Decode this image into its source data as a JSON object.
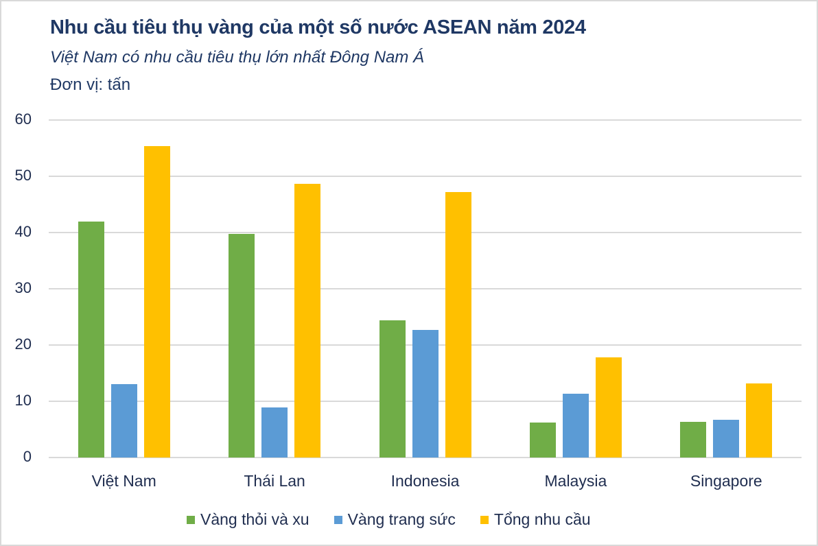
{
  "header": {
    "title": "Nhu cầu tiêu thụ vàng của một số nước ASEAN năm 2024",
    "subtitle": "Việt Nam có nhu cầu tiêu thụ lớn nhất Đông Nam Á",
    "unit": "Đơn vị: tấn"
  },
  "axis": {
    "y_ticks": [
      "60",
      "50",
      "40",
      "30",
      "20",
      "10",
      "0"
    ]
  },
  "legend": [
    {
      "label": "Vàng thỏi và xu",
      "color": "#70ad47"
    },
    {
      "label": "Vàng trang sức",
      "color": "#5b9bd5"
    },
    {
      "label": "Tổng nhu cầu",
      "color": "#ffc000"
    }
  ],
  "categories": [
    "Việt Nam",
    "Thái Lan",
    "Indonesia",
    "Malaysia",
    "Singapore"
  ],
  "chart_data": {
    "type": "bar",
    "title": "Nhu cầu tiêu thụ vàng của một số nước ASEAN năm 2024",
    "subtitle": "Việt Nam có nhu cầu tiêu thụ lớn nhất Đông Nam Á",
    "unit": "Đơn vị: tấn",
    "categories": [
      "Việt Nam",
      "Thái Lan",
      "Indonesia",
      "Malaysia",
      "Singapore"
    ],
    "series": [
      {
        "name": "Vàng thỏi và xu",
        "color": "#70ad47",
        "values": [
          42.0,
          39.7,
          24.4,
          6.2,
          6.3
        ]
      },
      {
        "name": "Vàng trang sức",
        "color": "#5b9bd5",
        "values": [
          13.1,
          8.9,
          22.7,
          11.3,
          6.7
        ]
      },
      {
        "name": "Tổng nhu cầu",
        "color": "#ffc000",
        "values": [
          55.4,
          48.7,
          47.2,
          17.8,
          13.2
        ]
      }
    ],
    "xlabel": "",
    "ylabel": "",
    "ylim": [
      0,
      60
    ],
    "y_ticks": [
      0,
      10,
      20,
      30,
      40,
      50,
      60
    ],
    "grid": true,
    "legend_position": "bottom"
  }
}
